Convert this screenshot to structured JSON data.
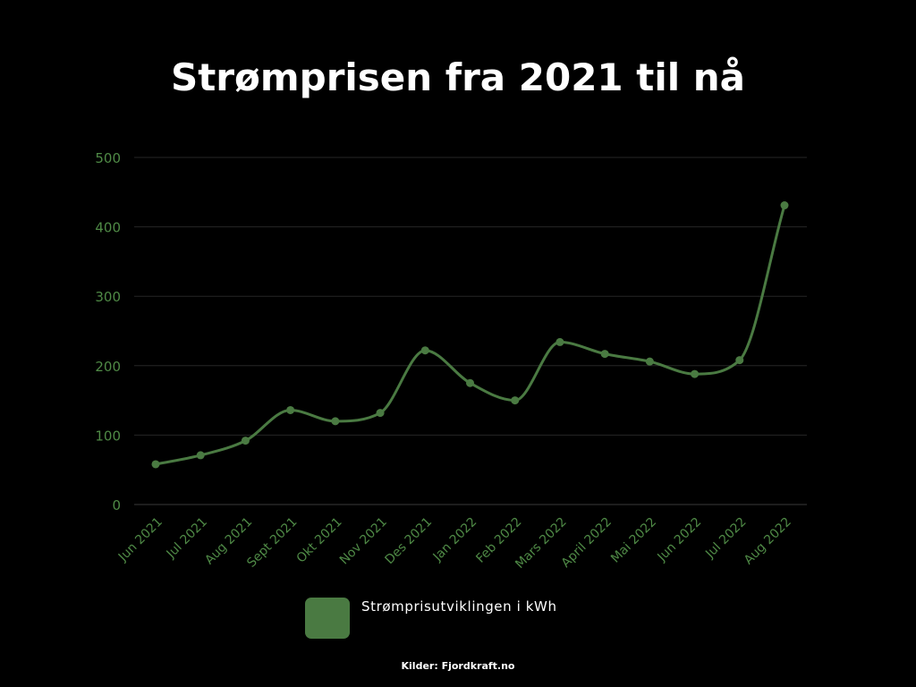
{
  "title": "Strømprisen fra 2021 til nå",
  "source": "Kilder: Fjordkraft.no",
  "colors": {
    "background": "#000000",
    "line": "#4a7a42",
    "axis_text": "#4f8a46",
    "grid": "#262626",
    "text": "#ffffff"
  },
  "chart_data": {
    "type": "line",
    "categories": [
      "Jun 2021",
      "Jul 2021",
      "Aug 2021",
      "Sept 2021",
      "Okt 2021",
      "Nov 2021",
      "Des 2021",
      "Jan 2022",
      "Feb 2022",
      "Mars 2022",
      "April 2022",
      "Mai 2022",
      "Jun 2022",
      "Jul 2022",
      "Aug 2022"
    ],
    "series": [
      {
        "name": "Strømprisutviklingen i kWh",
        "values": [
          58,
          71,
          92,
          136,
          120,
          132,
          222,
          175,
          150,
          234,
          217,
          206,
          188,
          208,
          431
        ]
      }
    ],
    "yticks": [
      0,
      100,
      200,
      300,
      400,
      500
    ],
    "ylim": [
      0,
      500
    ],
    "grid": true,
    "smooth": true,
    "legend_position": "bottom"
  }
}
